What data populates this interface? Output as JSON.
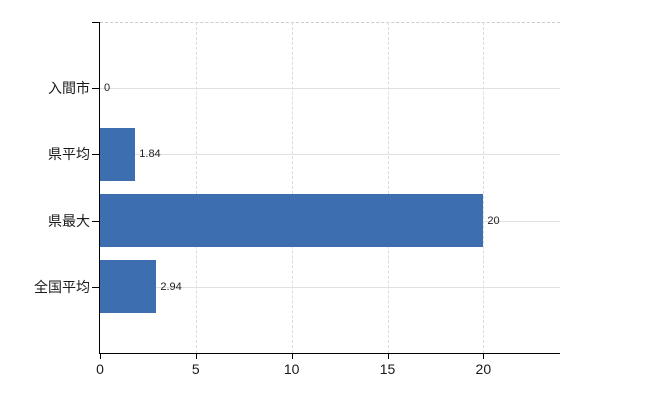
{
  "chart_data": {
    "type": "bar",
    "orientation": "horizontal",
    "title": "",
    "categories": [
      "入間市",
      "県平均",
      "県最大",
      "全国平均"
    ],
    "values": [
      0,
      1.84,
      20,
      2.94
    ],
    "value_labels": [
      "0",
      "1.84",
      "20",
      "2.94"
    ],
    "x_ticks": [
      0,
      5,
      10,
      15,
      20
    ],
    "x_tick_labels": [
      "0",
      "5",
      "10",
      "15",
      "20"
    ],
    "xlim": [
      0,
      24
    ],
    "grid": true,
    "legend": false,
    "colors": {
      "bar": "#3d6eb0",
      "h_gridline": "#dde3dd",
      "v_gridline": "#d6ded6",
      "plot_top_border": "#cccccc",
      "axis": "#000000",
      "tick_label": "#1a1a1a",
      "value_label": "#222222"
    }
  }
}
